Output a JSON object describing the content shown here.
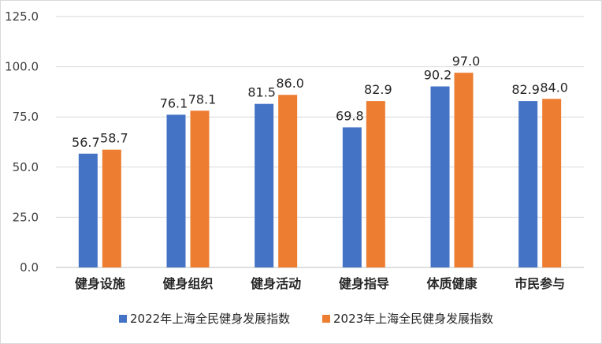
{
  "chart_data": {
    "type": "bar",
    "categories": [
      "健身设施",
      "健身组织",
      "健身活动",
      "健身指导",
      "体质健康",
      "市民参与"
    ],
    "series": [
      {
        "name": "2022年上海全民健身发展指数",
        "values": [
          56.7,
          76.1,
          81.5,
          69.8,
          90.2,
          82.9
        ],
        "labels": [
          "56.7",
          "76.1",
          "81.5",
          "69.8",
          "90.2",
          "82.9"
        ],
        "color": "#4472c4"
      },
      {
        "name": "2023年上海全民健身发展指数",
        "values": [
          58.7,
          78.1,
          86.0,
          82.9,
          97.0,
          84.0
        ],
        "labels": [
          "58.7",
          "78.1",
          "86.0",
          "82.9",
          "97.0",
          "84.0"
        ],
        "color": "#ed7d31"
      }
    ],
    "ylim": [
      0,
      125
    ],
    "yticks": [
      "0.0",
      "25.0",
      "50.0",
      "75.0",
      "100.0",
      "125.0"
    ],
    "grid": true,
    "legend": "bottom",
    "title": "",
    "xlabel": "",
    "ylabel": ""
  }
}
